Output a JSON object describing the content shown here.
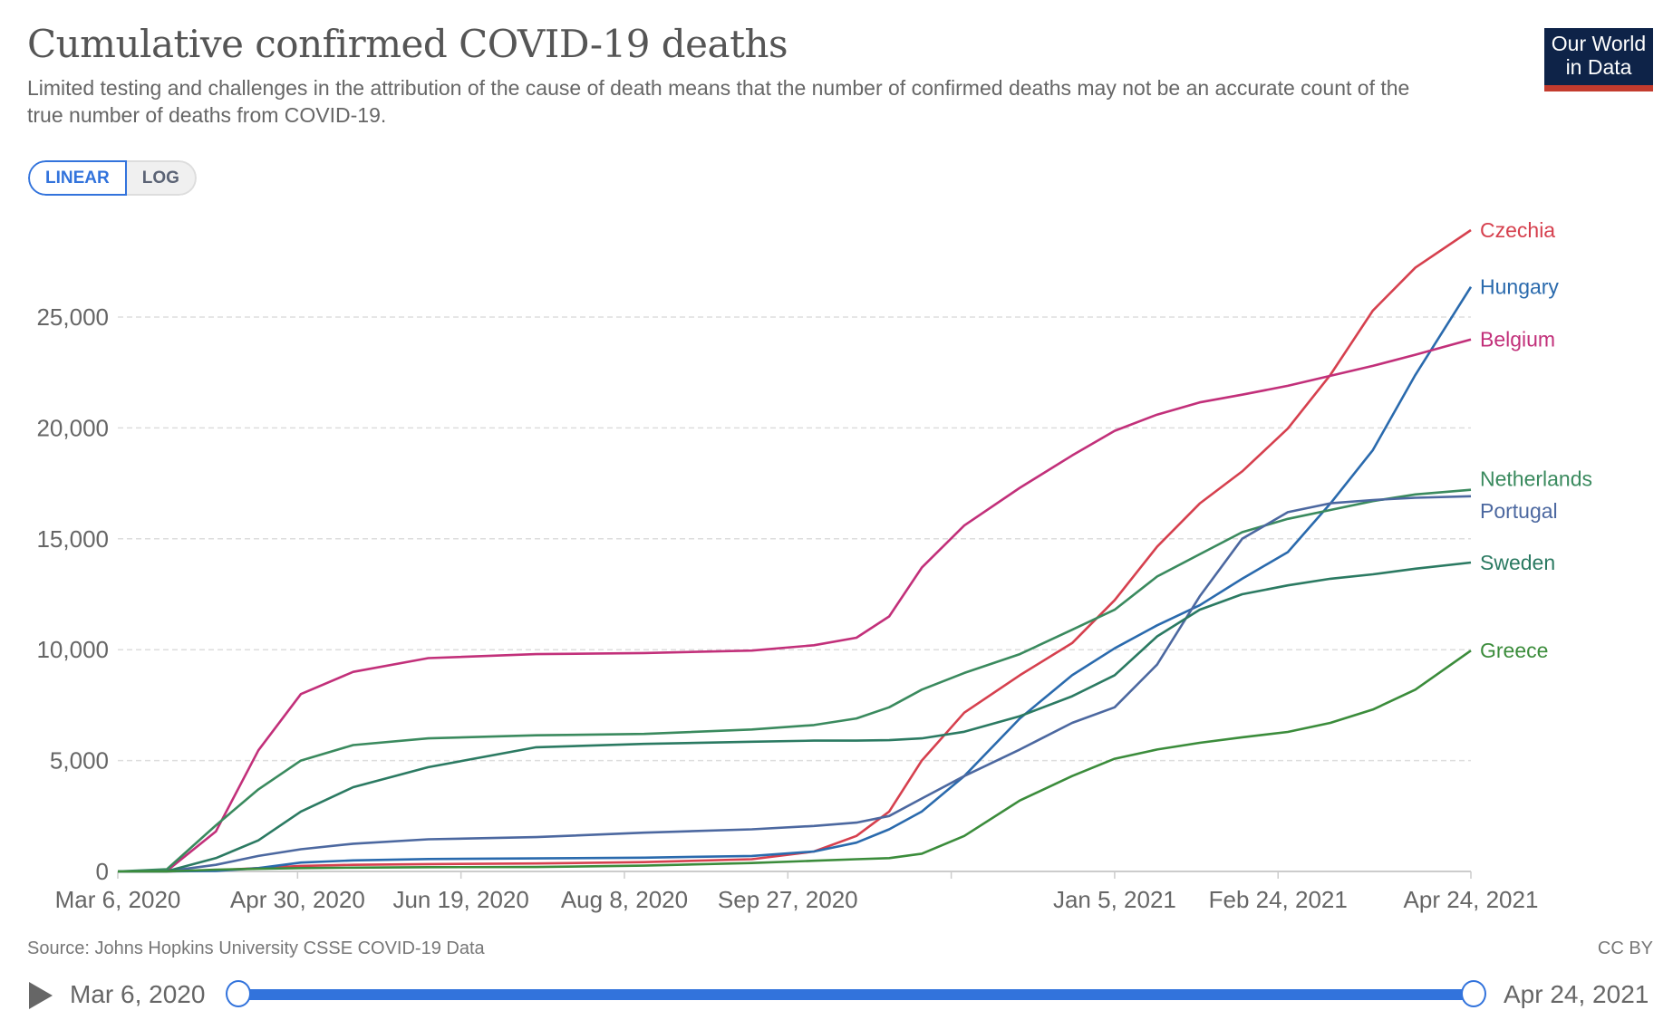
{
  "header": {
    "title": "Cumulative confirmed COVID-19 deaths",
    "subtitle": "Limited testing and challenges in the attribution of the cause of death means that the number of confirmed deaths may not be an accurate count of the true number of deaths from COVID-19.",
    "logo_line1": "Our World",
    "logo_line2": "in Data"
  },
  "controls": {
    "linear": "LINEAR",
    "log": "LOG",
    "active": "LINEAR"
  },
  "footer": {
    "source": "Source: Johns Hopkins University CSSE COVID-19 Data",
    "license": "CC BY"
  },
  "timeline": {
    "start": "Mar 6, 2020",
    "end": "Apr 24, 2021"
  },
  "chart_data": {
    "type": "line",
    "title": "Cumulative confirmed COVID-19 deaths",
    "xlim": [
      "2020-03-06",
      "2021-04-24"
    ],
    "ylim": [
      0,
      28000
    ],
    "grid": "horizontal dashed",
    "legend": "right, end-of-line labels",
    "yticks": [
      0,
      5000,
      10000,
      15000,
      20000,
      25000
    ],
    "ytick_labels": [
      "0",
      "5,000",
      "10,000",
      "15,000",
      "20,000",
      "25,000"
    ],
    "xticks": [
      {
        "date": "2020-03-06",
        "label": "Mar 6, 2020"
      },
      {
        "date": "2020-04-30",
        "label": "Apr 30, 2020"
      },
      {
        "date": "2020-06-19",
        "label": "Jun 19, 2020"
      },
      {
        "date": "2020-08-08",
        "label": "Aug 8, 2020"
      },
      {
        "date": "2020-09-27",
        "label": "Sep 27, 2020"
      },
      {
        "date": "2020-11-16",
        "label": ""
      },
      {
        "date": "2021-01-05",
        "label": "Jan 5, 2021"
      },
      {
        "date": "2021-02-24",
        "label": "Feb 24, 2021"
      },
      {
        "date": "2021-04-24",
        "label": "Apr 24, 2021"
      }
    ],
    "x": [
      "2020-03-06",
      "2020-03-21",
      "2020-04-05",
      "2020-04-18",
      "2020-05-01",
      "2020-05-17",
      "2020-06-09",
      "2020-07-12",
      "2020-08-14",
      "2020-09-16",
      "2020-10-05",
      "2020-10-18",
      "2020-10-28",
      "2020-11-07",
      "2020-11-20",
      "2020-12-07",
      "2020-12-23",
      "2021-01-05",
      "2021-01-18",
      "2021-01-31",
      "2021-02-13",
      "2021-02-27",
      "2021-03-12",
      "2021-03-25",
      "2021-04-07",
      "2021-04-24"
    ],
    "series": [
      {
        "name": "Czechia",
        "color": "#d6404e",
        "values": [
          0,
          0,
          50,
          150,
          250,
          300,
          330,
          360,
          420,
          550,
          900,
          1600,
          2700,
          5000,
          7160,
          8850,
          10300,
          12230,
          14650,
          16590,
          18040,
          19970,
          22390,
          25290,
          27230,
          28920
        ]
      },
      {
        "name": "Hungary",
        "color": "#2a6aad",
        "values": [
          0,
          0,
          20,
          150,
          400,
          500,
          560,
          590,
          620,
          700,
          900,
          1300,
          1900,
          2700,
          4300,
          6900,
          8850,
          10060,
          11100,
          12000,
          13200,
          14400,
          16590,
          19000,
          22390,
          26360
        ]
      },
      {
        "name": "Belgium",
        "color": "#c2307a",
        "values": [
          0,
          30,
          1800,
          5460,
          8000,
          9000,
          9620,
          9800,
          9850,
          9960,
          10200,
          10540,
          11500,
          13700,
          15600,
          17300,
          18760,
          19870,
          20600,
          21150,
          21500,
          21900,
          22350,
          22800,
          23300,
          23990
        ]
      },
      {
        "name": "Netherlands",
        "color": "#3a8a5e",
        "values": [
          0,
          100,
          2080,
          3700,
          5000,
          5700,
          6000,
          6140,
          6200,
          6400,
          6600,
          6900,
          7400,
          8200,
          8950,
          9800,
          10900,
          11800,
          13300,
          14300,
          15300,
          15900,
          16300,
          16700,
          17000,
          17210
        ]
      },
      {
        "name": "Portugal",
        "color": "#4c68a0",
        "values": [
          0,
          10,
          300,
          700,
          1000,
          1250,
          1450,
          1550,
          1750,
          1900,
          2050,
          2200,
          2500,
          3290,
          4300,
          5500,
          6700,
          7400,
          9330,
          12400,
          15000,
          16200,
          16600,
          16750,
          16850,
          16920
        ]
      },
      {
        "name": "Sweden",
        "color": "#2b7a62",
        "values": [
          0,
          10,
          600,
          1400,
          2700,
          3800,
          4700,
          5600,
          5750,
          5850,
          5900,
          5900,
          5920,
          6000,
          6300,
          7000,
          7900,
          8850,
          10600,
          11800,
          12500,
          12900,
          13200,
          13400,
          13650,
          13930
        ]
      },
      {
        "name": "Greece",
        "color": "#3b8c3b",
        "values": [
          0,
          0,
          80,
          120,
          150,
          170,
          190,
          200,
          260,
          380,
          480,
          550,
          600,
          800,
          1600,
          3200,
          4300,
          5080,
          5500,
          5800,
          6050,
          6290,
          6700,
          7300,
          8200,
          9960
        ]
      }
    ]
  }
}
